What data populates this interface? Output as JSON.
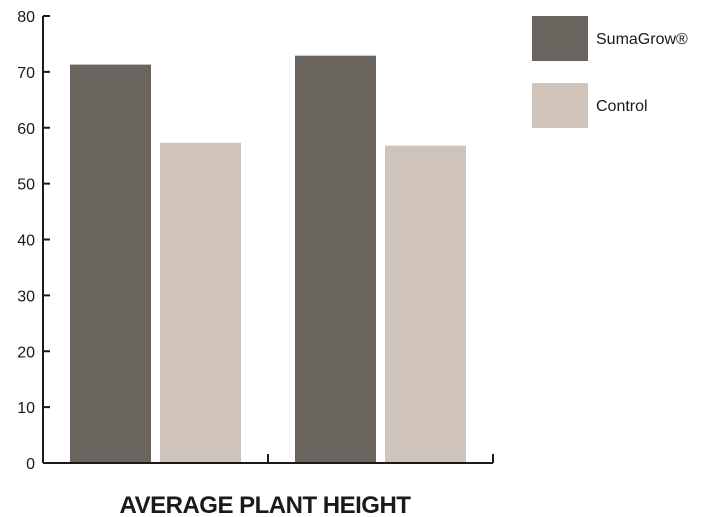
{
  "chart_data": {
    "type": "bar",
    "title": "AVERAGE PLANT HEIGHT",
    "categories": [
      "",
      ""
    ],
    "series": [
      {
        "name": "SumaGrow®",
        "color": "#6a645e",
        "values": [
          71.3,
          72.9
        ]
      },
      {
        "name": "Control",
        "color": "#d0c3b9",
        "values": [
          57.3,
          56.8
        ]
      }
    ],
    "ylim": [
      0,
      80
    ],
    "yticks": [
      0,
      10,
      20,
      30,
      40,
      50,
      60,
      70,
      80
    ],
    "grid": false,
    "legend_position": "top-right"
  }
}
